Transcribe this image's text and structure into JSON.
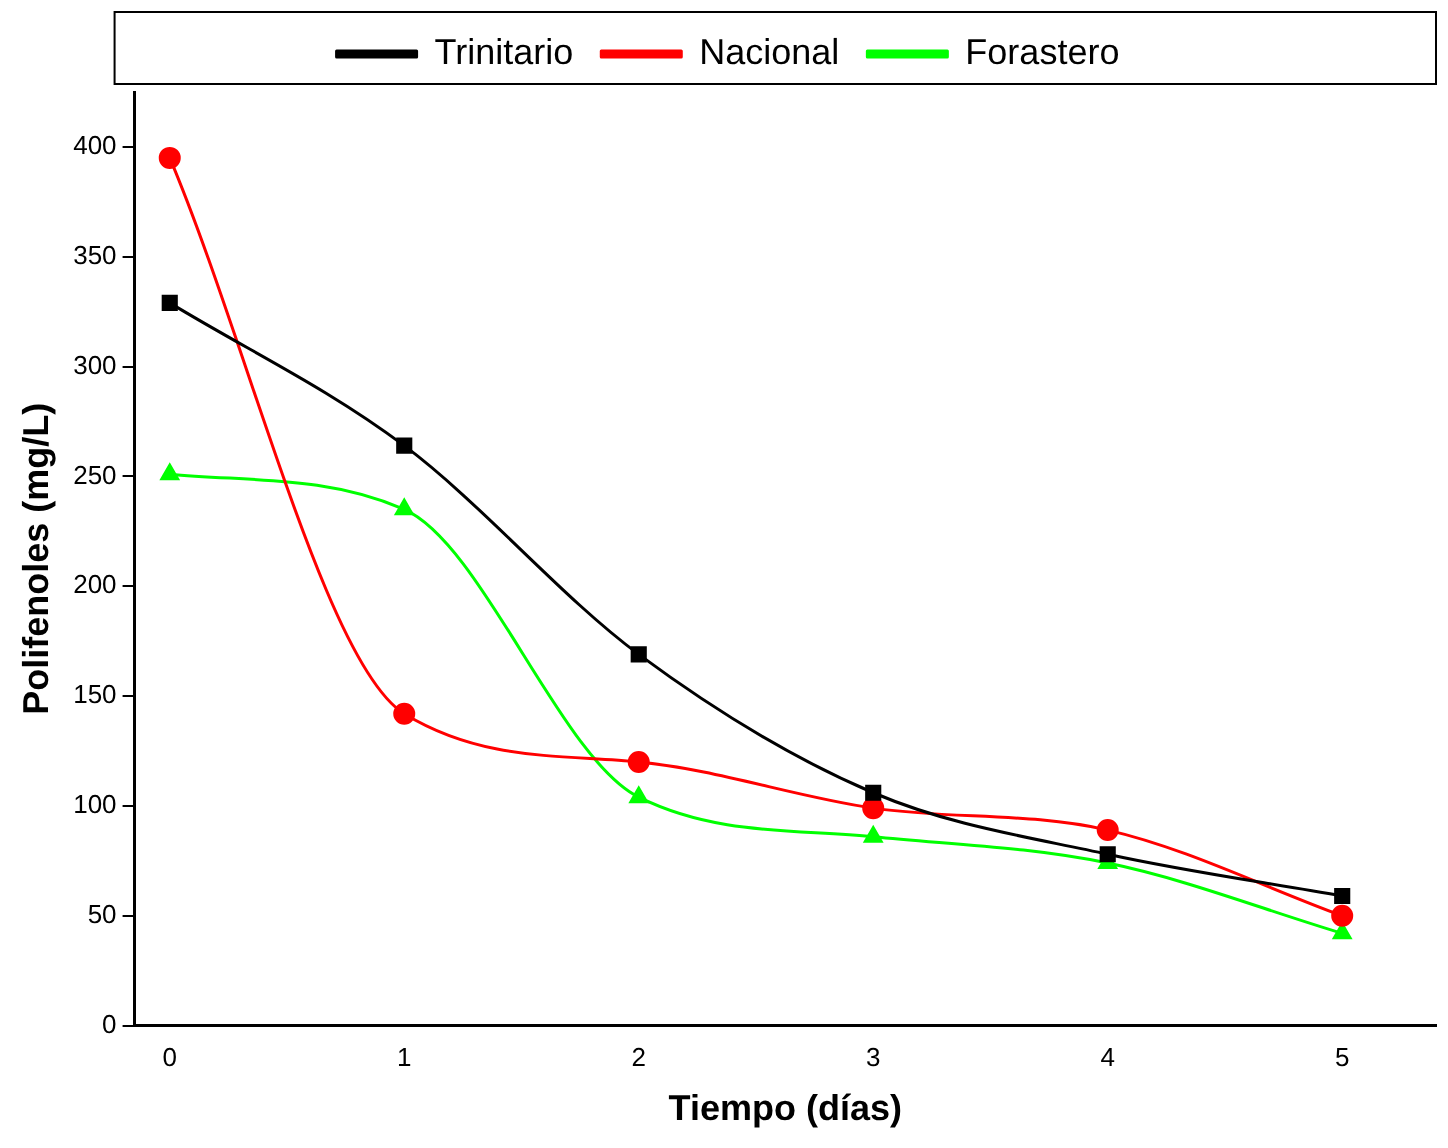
{
  "chart_data": {
    "type": "line",
    "xlabel": "Tiempo (días)",
    "ylabel": "Polifenoles (mg/L)",
    "x": [
      0,
      1,
      2,
      3,
      4,
      5
    ],
    "series": [
      {
        "name": "Trinitario",
        "color": "#000000",
        "marker": "square",
        "values": [
          329,
          264,
          169,
          106,
          78,
          59
        ]
      },
      {
        "name": "Nacional",
        "color": "#ff0000",
        "marker": "circle",
        "values": [
          395,
          142,
          120,
          99,
          89,
          50
        ]
      },
      {
        "name": "Forastero",
        "color": "#00ff00",
        "marker": "triangle",
        "values": [
          251,
          235,
          104,
          86,
          74,
          42
        ]
      }
    ],
    "xlim": [
      -0.15,
      5.4
    ],
    "xticks": [
      0,
      1,
      2,
      3,
      4,
      5
    ],
    "ylim": [
      0,
      425
    ],
    "yticks": [
      0,
      50,
      100,
      150,
      200,
      250,
      300,
      350,
      400
    ],
    "grid": false,
    "legend": "top",
    "line_style": "solid"
  }
}
